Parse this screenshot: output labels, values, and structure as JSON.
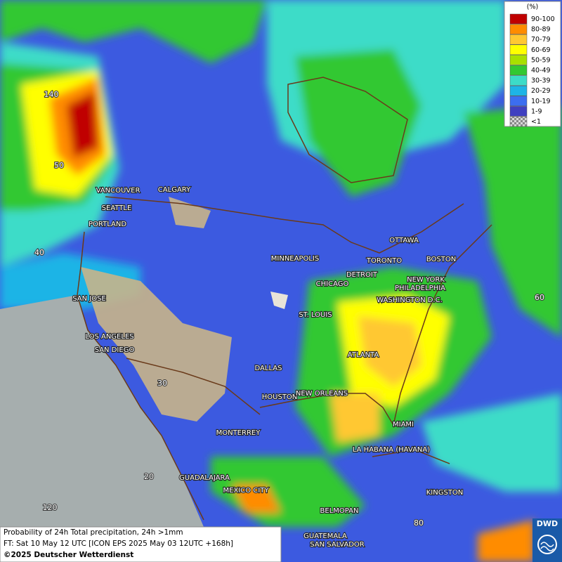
{
  "map": {
    "legend": {
      "title": "(%)",
      "items": [
        {
          "label": "90-100",
          "color": "#c00000"
        },
        {
          "label": "80-89",
          "color": "#ff8c00"
        },
        {
          "label": "70-79",
          "color": "#ffc832"
        },
        {
          "label": "60-69",
          "color": "#ffff00"
        },
        {
          "label": "50-59",
          "color": "#a8e000"
        },
        {
          "label": "40-49",
          "color": "#32c832"
        },
        {
          "label": "30-39",
          "color": "#3cdcc8"
        },
        {
          "label": "20-29",
          "color": "#1eb4e6"
        },
        {
          "label": "10-19",
          "color": "#3c6ef0"
        },
        {
          "label": "1-9",
          "color": "#4040c0"
        },
        {
          "label": "<1",
          "color": "#b4b4b4"
        }
      ]
    },
    "cities": [
      "VANCOUVER",
      "CALGARY",
      "SEATTLE",
      "PORTLAND",
      "OTTAWA",
      "TORONTO",
      "BOSTON",
      "MINNEAPOLIS",
      "DETROIT",
      "NEW YORK",
      "PHILADELPHIA",
      "CHICAGO",
      "WASHINGTON D.C.",
      "SAN JOSE",
      "ST. LOUIS",
      "LOS ANGELES",
      "SAN DIEGO",
      "ATLANTA",
      "DALLAS",
      "HOUSTON",
      "NEW ORLEANS",
      "MIAMI",
      "MONTERREY",
      "LA HABANA (HAVANA)",
      "GUADALAJARA",
      "MEXICO CITY",
      "KINGSTON",
      "BELMOPAN",
      "GUATEMALA",
      "SAN SALVADOR"
    ],
    "graticule_labels": [
      "140",
      "50",
      "40",
      "60",
      "30",
      "20",
      "120",
      "80"
    ],
    "footer": {
      "line1": "Probability of 24h Total precipitation, 24h >1mm",
      "line2": "FT: Sat 10 May 12 UTC [ICON EPS 2025 May 03 12UTC +168h]",
      "line3": "©2025 Deutscher Wetterdienst"
    },
    "logo": "DWD"
  }
}
